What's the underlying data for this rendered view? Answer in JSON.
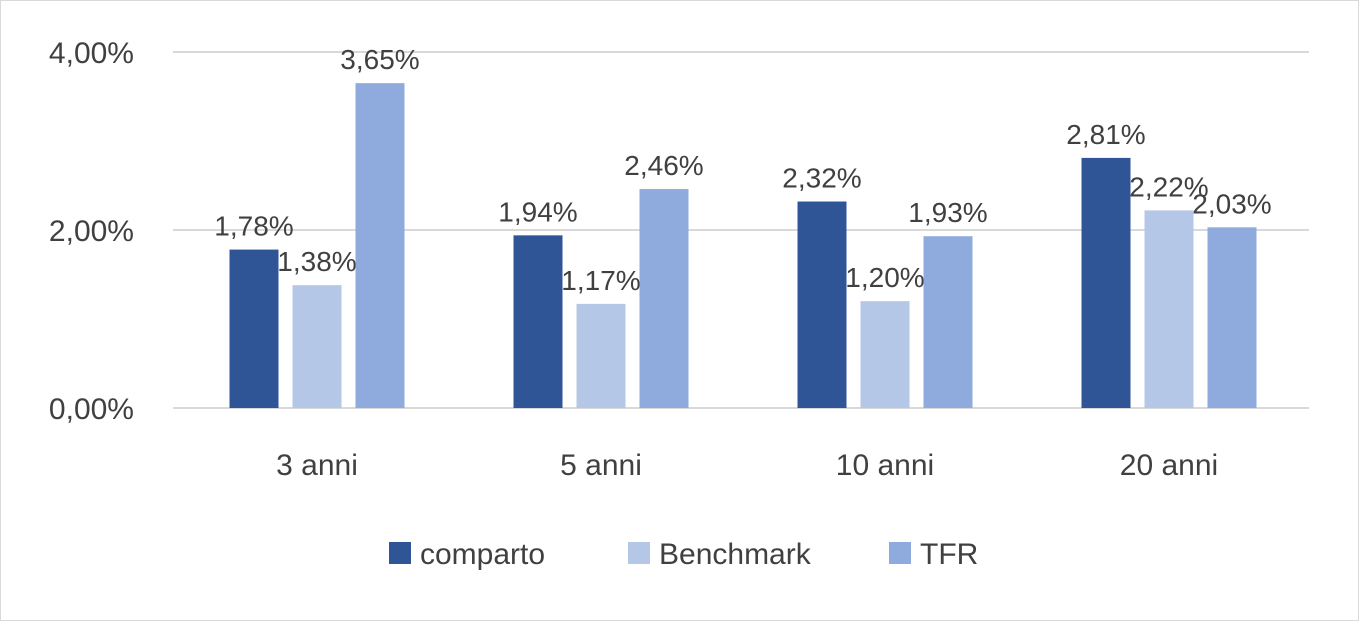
{
  "chart_data": {
    "type": "bar",
    "categories": [
      "3 anni",
      "5 anni",
      "10 anni",
      "20 anni"
    ],
    "series": [
      {
        "name": "comparto",
        "values": [
          1.78,
          1.94,
          2.32,
          2.81
        ],
        "labels": [
          "1,78%",
          "1,94%",
          "2,32%",
          "2,81%"
        ],
        "color": "#2F5597"
      },
      {
        "name": "Benchmark",
        "values": [
          1.38,
          1.17,
          1.2,
          2.22
        ],
        "labels": [
          "1,38%",
          "1,17%",
          "1,20%",
          "2,22%"
        ],
        "color": "#B4C7E7"
      },
      {
        "name": "TFR",
        "values": [
          3.65,
          2.46,
          1.93,
          2.03
        ],
        "labels": [
          "3,65%",
          "2,46%",
          "1,93%",
          "2,03%"
        ],
        "color": "#8FAADC"
      }
    ],
    "ylim": [
      0,
      4
    ],
    "yticks": [
      0,
      2,
      4
    ],
    "ytick_labels": [
      "0,00%",
      "2,00%",
      "4,00%"
    ],
    "grid": true,
    "gridline_color": "#d9d9d9",
    "legend_position": "bottom",
    "title": "",
    "xlabel": "",
    "ylabel": ""
  }
}
